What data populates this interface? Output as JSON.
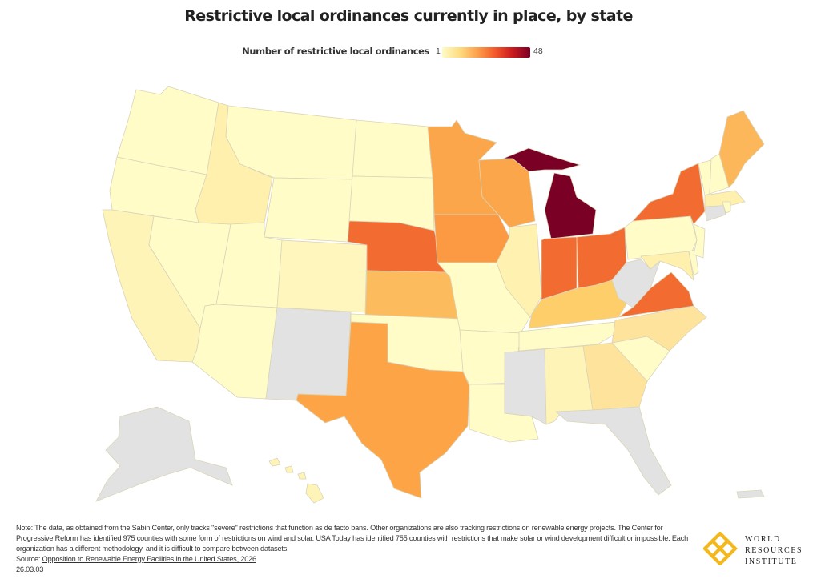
{
  "title": "Restrictive local ordinances currently in place, by state",
  "legend": {
    "title": "Number of restrictive local ordinances",
    "min": "1",
    "max": "48",
    "colors": [
      "#fffbc6",
      "#fedc80",
      "#fca04a",
      "#f4592b",
      "#c81a1f",
      "#7a0025"
    ]
  },
  "no_data_color": "#e2e2e2",
  "chart_data": {
    "type": "choropleth",
    "title": "Restrictive local ordinances currently in place, by state",
    "value_label": "Number of restrictive local ordinances",
    "range": [
      1,
      48
    ],
    "color_levels_estimated": {
      "Michigan": "darkest (about 48)",
      "Nebraska": "high",
      "Ohio": "high",
      "Indiana": "high",
      "Virginia": "high",
      "New York": "high",
      "Texas": "medium",
      "Kansas": "medium",
      "Minnesota": "medium",
      "Wisconsin": "medium",
      "Iowa": "medium",
      "Maine": "medium",
      "Kentucky": "low-medium",
      "Idaho": "low",
      "North Carolina": "low",
      "Georgia": "low",
      "Illinois": "low",
      "Maryland": "low",
      "Massachusetts": "low",
      "no_data": [
        "New Mexico",
        "West Virginia",
        "Mississippi",
        "Florida",
        "Connecticut",
        "Alaska",
        "Puerto Rico"
      ]
    }
  },
  "note": {
    "text": "Note: The data, as obtained from the Sabin Center, only tracks \"severe\" restrictions that function as de facto bans. Other organizations are also tracking restrictions on renewable energy projects. The Center for Progressive Reform has identified 975 counties with some form of restrictions on wind and solar. USA Today has identified 755 counties with restrictions that make solar or wind development difficult or impossible. Each organization has a different methodology, and it is difficult to compare between datasets.",
    "source_label": "Source: ",
    "source_link": "Opposition to Renewable Energy Facilities in the United States, 2026",
    "date": "26.03.03"
  },
  "logo": {
    "line1": "WORLD",
    "line2": "RESOURCES",
    "line3": "INSTITUTE"
  }
}
